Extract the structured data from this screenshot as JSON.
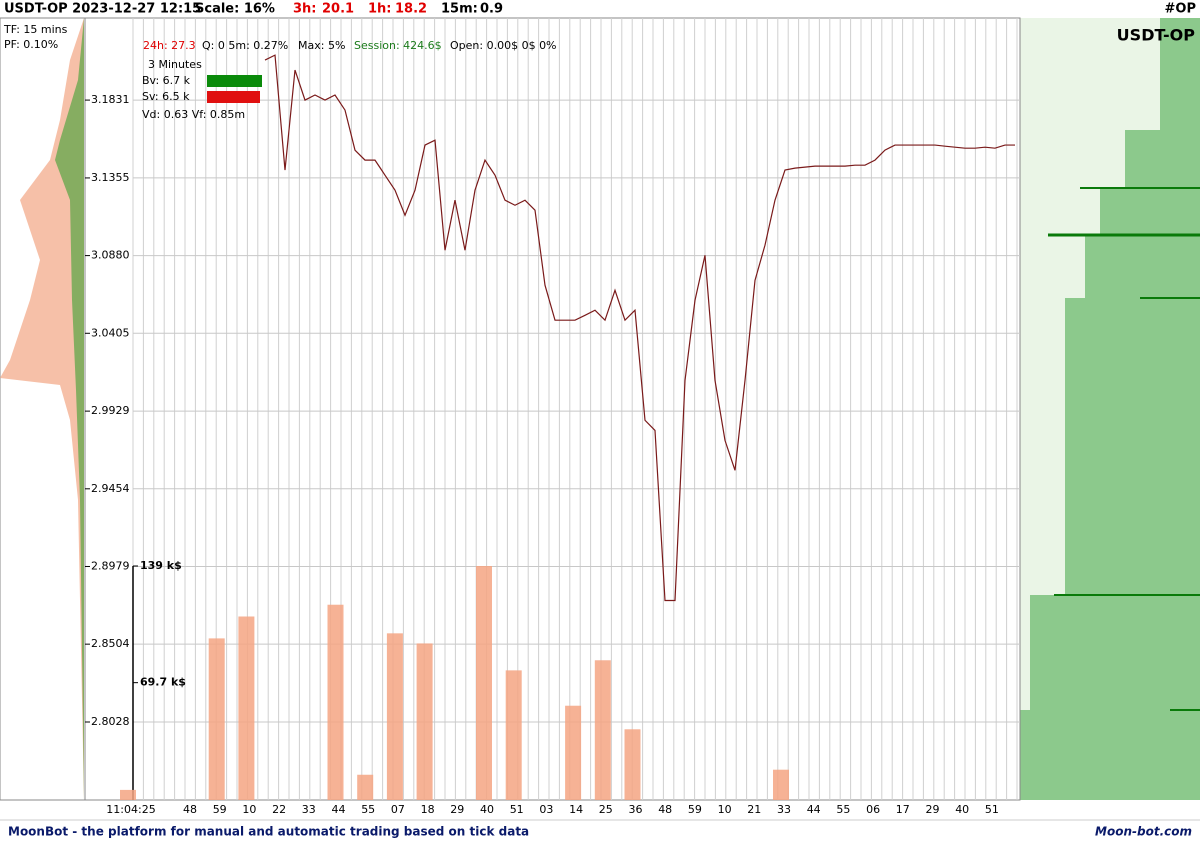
{
  "header": {
    "title": "USDT-OP 2023-12-27 12:15",
    "scale": "Scale: 16%",
    "h3_label": "3h:",
    "h3_value": 20.1,
    "h1_label": "1h:",
    "h1_value": 18.2,
    "m15_label": "15m:",
    "m15_value": 0.9,
    "tag": "#OP"
  },
  "side": {
    "tf": "TF: 15 mins",
    "pf": "PF: 0.10%"
  },
  "info": {
    "h24": "24h: 27.3",
    "q": "Q: 0 5m: 0.27%",
    "max": "Max: 5%",
    "session": "Session: 424.6$",
    "open": "Open: 0.00$  0$  0%",
    "period": "3 Minutes",
    "bv": "Bv: 6.7 k",
    "sv": "Sv: 6.5 k",
    "vd": "Vd: 0.63  Vf: 0.85m"
  },
  "pair": "USDT-OP",
  "footer": {
    "left": "MoonBot - the platform for manual and automatic trading based on tick data",
    "right": "Moon-bot.com"
  },
  "chart_data": {
    "type": "line",
    "ylim": [
      2.7551,
      3.2333
    ],
    "yticks": [
      {
        "value": 2.8028,
        "label": "2.8028"
      },
      2.8504,
      2.8979,
      {
        "value": 2.9454,
        "label": "2.9454"
      },
      2.9929,
      3.0405,
      {
        "value": 3.088,
        "label": "3.0880"
      },
      3.1355,
      3.1831
    ],
    "categories": [
      "11:04:25",
      "48",
      "59",
      "10",
      "22",
      "33",
      "44",
      "55",
      "07",
      "18",
      "29",
      "40",
      "51",
      "03",
      "14",
      "25",
      "36",
      "48",
      "59",
      "10",
      "21",
      "33",
      "44",
      "55",
      "06",
      "17",
      "29",
      "40",
      "51"
    ],
    "price": {
      "color": "#7a1a1a",
      "values": [
        3.2076,
        3.2106,
        3.1403,
        3.2015,
        3.1831,
        3.1862,
        3.1831,
        3.1862,
        3.177,
        3.1525,
        3.1464,
        3.1464,
        3.1372,
        3.128,
        3.1127,
        3.128,
        3.1556,
        3.1586,
        3.0913,
        3.1219,
        3.0913,
        3.128,
        3.1464,
        3.1372,
        3.1219,
        3.1188,
        3.1219,
        3.1158,
        3.0699,
        3.0485,
        3.0485,
        3.0485,
        3.0515,
        3.0546,
        3.0485,
        3.0668,
        3.0485,
        3.0546,
        2.9873,
        2.9811,
        2.8771,
        2.8771,
        3.0117,
        3.0607,
        3.0882,
        3.0117,
        2.975,
        2.9567,
        3.0117,
        3.0729,
        3.0944,
        3.1219,
        3.1403,
        3.1415,
        3.1421,
        3.1427,
        3.1427,
        3.1427,
        3.1427,
        3.1433,
        3.1433,
        3.1464,
        3.1525,
        3.1556,
        3.1556,
        3.1556,
        3.1556,
        3.1556,
        3.1549,
        3.1543,
        3.1537,
        3.1537,
        3.1543,
        3.1537,
        3.1556,
        3.1556
      ]
    },
    "volume": {
      "color": "#f4a582",
      "vlim": [
        0,
        139
      ],
      "vticks": [
        {
          "value": 69.7,
          "label": "69.7 k$"
        },
        {
          "value": 139,
          "label": "139 k$"
        }
      ],
      "values": [
        6,
        0,
        96,
        109,
        0,
        0,
        116,
        15,
        99,
        93,
        0,
        139,
        77,
        0,
        56,
        83,
        42,
        0,
        0,
        0,
        0,
        18,
        0,
        0,
        0,
        0,
        0,
        0,
        0
      ]
    }
  }
}
